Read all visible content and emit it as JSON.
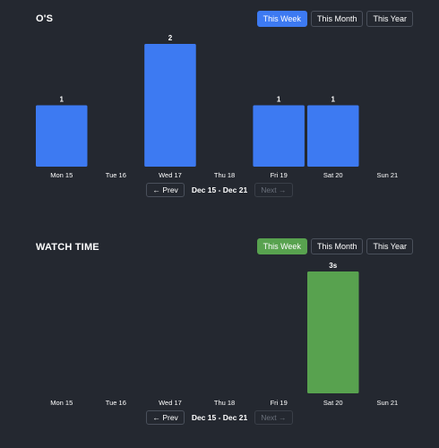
{
  "os_panel": {
    "title": "O'S",
    "ranges": [
      "This Week",
      "This Month",
      "This Year"
    ],
    "active_range": "This Week",
    "accent": "#3d7af2",
    "pager": {
      "prev": "← Prev",
      "label": "Dec 15 - Dec 21",
      "next": "Next →"
    }
  },
  "watch_panel": {
    "title": "WATCH TIME",
    "ranges": [
      "This Week",
      "This Month",
      "This Year"
    ],
    "active_range": "This Week",
    "accent": "#58a24f",
    "pager": {
      "prev": "← Prev",
      "label": "Dec 15 - Dec 21",
      "next": "Next →"
    }
  },
  "chart_data": [
    {
      "type": "bar",
      "title": "O'S",
      "categories": [
        "Mon 15",
        "Tue 16",
        "Wed 17",
        "Thu 18",
        "Fri 19",
        "Sat 20",
        "Sun 21"
      ],
      "values": [
        1,
        0,
        2,
        0,
        1,
        1,
        0
      ],
      "data_labels": [
        "1",
        "",
        "2",
        "",
        "1",
        "1",
        ""
      ],
      "color": "#3d7af2",
      "ylim": [
        0,
        2
      ],
      "grid": false
    },
    {
      "type": "bar",
      "title": "WATCH TIME",
      "categories": [
        "Mon 15",
        "Tue 16",
        "Wed 17",
        "Thu 18",
        "Fri 19",
        "Sat 20",
        "Sun 21"
      ],
      "values": [
        0,
        0,
        0,
        0,
        0,
        3,
        0
      ],
      "data_labels": [
        "",
        "",
        "",
        "",
        "",
        "3s",
        ""
      ],
      "unit": "s",
      "color": "#58a24f",
      "ylim": [
        0,
        3
      ],
      "grid": false
    }
  ]
}
